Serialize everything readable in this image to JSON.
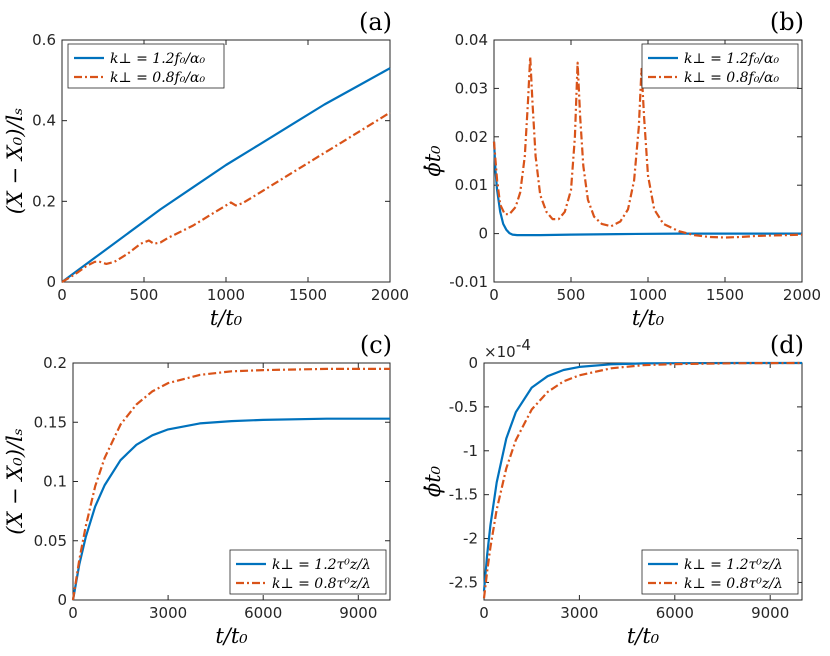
{
  "series_colors": [
    "#0072BD",
    "#D95319"
  ],
  "chart_data": [
    {
      "id": "a",
      "type": "line",
      "panel_label": "(a)",
      "xlabel": "t/t₀",
      "ylabel": "(X − X₀)/lₛ",
      "xlim": [
        0,
        2000
      ],
      "ylim": [
        0,
        0.6
      ],
      "xticks": [
        0,
        500,
        1000,
        1500,
        2000
      ],
      "xtick_labels": [
        "0",
        "500",
        "1000",
        "1500",
        "2000"
      ],
      "yticks": [
        0,
        0.2,
        0.4,
        0.6
      ],
      "ytick_labels": [
        "0",
        "0.2",
        "0.4",
        "0.6"
      ],
      "legend_position": "top-left",
      "series": [
        {
          "name": "k⊥ = 1.2f₀/α₀",
          "style": "solid",
          "x": [
            0,
            100,
            200,
            400,
            600,
            800,
            1000,
            1200,
            1400,
            1600,
            1800,
            2000
          ],
          "y": [
            0,
            0.03,
            0.06,
            0.12,
            0.18,
            0.235,
            0.29,
            0.34,
            0.39,
            0.44,
            0.485,
            0.53
          ]
        },
        {
          "name": "k⊥ = 0.8f₀/α₀",
          "style": "dashdot",
          "x": [
            0,
            50,
            100,
            150,
            200,
            230,
            270,
            320,
            400,
            480,
            530,
            560,
            600,
            650,
            700,
            800,
            900,
            1000,
            1030,
            1060,
            1100,
            1200,
            1300,
            1400,
            1500,
            1600,
            1700,
            1800,
            1900,
            2000
          ],
          "y": [
            0,
            0.012,
            0.025,
            0.04,
            0.05,
            0.05,
            0.045,
            0.05,
            0.07,
            0.095,
            0.103,
            0.095,
            0.098,
            0.11,
            0.12,
            0.14,
            0.165,
            0.19,
            0.197,
            0.19,
            0.195,
            0.22,
            0.245,
            0.27,
            0.295,
            0.32,
            0.345,
            0.37,
            0.395,
            0.42
          ]
        }
      ]
    },
    {
      "id": "b",
      "type": "line",
      "panel_label": "(b)",
      "xlabel": "t/t₀",
      "ylabel": "ϕ̇t₀",
      "xlim": [
        0,
        2000
      ],
      "ylim": [
        -0.01,
        0.04
      ],
      "xticks": [
        0,
        500,
        1000,
        1500,
        2000
      ],
      "xtick_labels": [
        "0",
        "500",
        "1000",
        "1500",
        "2000"
      ],
      "yticks": [
        -0.01,
        0,
        0.01,
        0.02,
        0.03,
        0.04
      ],
      "ytick_labels": [
        "-0.01",
        "0",
        "0.01",
        "0.02",
        "0.03",
        "0.04"
      ],
      "legend_position": "top-right",
      "series": [
        {
          "name": "k⊥ = 1.2f₀/α₀",
          "style": "solid",
          "x": [
            0,
            10,
            20,
            40,
            60,
            80,
            100,
            120,
            150,
            200,
            300,
            500,
            800,
            1200,
            1600,
            2000
          ],
          "y": [
            0.019,
            0.013,
            0.009,
            0.0045,
            0.002,
            0.0008,
            0.0001,
            -0.0002,
            -0.0003,
            -0.0003,
            -0.0003,
            -0.0002,
            -0.0001,
            0,
            0,
            0
          ]
        },
        {
          "name": "k⊥ = 0.8f₀/α₀",
          "style": "dashdot",
          "x": [
            0,
            20,
            40,
            70,
            100,
            140,
            170,
            200,
            220,
            235,
            250,
            270,
            300,
            340,
            380,
            420,
            460,
            500,
            525,
            543,
            560,
            580,
            610,
            650,
            700,
            760,
            820,
            870,
            910,
            940,
            958,
            975,
            1000,
            1040,
            1100,
            1200,
            1300,
            1400,
            1500,
            1600,
            1700,
            1800,
            1900,
            2000
          ],
          "y": [
            0.019,
            0.011,
            0.006,
            0.004,
            0.004,
            0.0055,
            0.0085,
            0.016,
            0.027,
            0.0365,
            0.027,
            0.016,
            0.008,
            0.0045,
            0.003,
            0.003,
            0.0045,
            0.009,
            0.02,
            0.0353,
            0.024,
            0.014,
            0.007,
            0.0035,
            0.002,
            0.0015,
            0.0025,
            0.005,
            0.011,
            0.022,
            0.034,
            0.024,
            0.012,
            0.005,
            0.002,
            0.0005,
            -0.0003,
            -0.0007,
            -0.0008,
            -0.0007,
            -0.0005,
            -0.0004,
            -0.0003,
            -0.0002
          ]
        }
      ]
    },
    {
      "id": "c",
      "type": "line",
      "panel_label": "(c)",
      "xlabel": "t/t₀",
      "ylabel": "(X − X₀)/lₛ",
      "xlim": [
        0,
        10000
      ],
      "ylim": [
        0,
        0.2
      ],
      "xticks": [
        0,
        3000,
        6000,
        9000
      ],
      "xtick_labels": [
        "0",
        "3000",
        "6000",
        "9000"
      ],
      "yticks": [
        0,
        0.05,
        0.1,
        0.15,
        0.2
      ],
      "ytick_labels": [
        "0",
        "0.05",
        "0.1",
        "0.15",
        "0.2"
      ],
      "legend_position": "bottom-right",
      "series": [
        {
          "name": "k⊥ = 1.2τ⁰z/λ",
          "style": "solid",
          "x": [
            0,
            200,
            400,
            700,
            1000,
            1500,
            2000,
            2500,
            3000,
            4000,
            5000,
            6000,
            8000,
            10000
          ],
          "y": [
            0,
            0.03,
            0.053,
            0.079,
            0.097,
            0.118,
            0.131,
            0.139,
            0.144,
            0.149,
            0.151,
            0.152,
            0.153,
            0.153
          ]
        },
        {
          "name": "k⊥ = 0.8τ⁰z/λ",
          "style": "dashdot",
          "x": [
            0,
            200,
            400,
            700,
            1000,
            1500,
            2000,
            2500,
            3000,
            4000,
            5000,
            6000,
            8000,
            10000
          ],
          "y": [
            0,
            0.034,
            0.062,
            0.096,
            0.12,
            0.148,
            0.165,
            0.176,
            0.183,
            0.19,
            0.193,
            0.194,
            0.195,
            0.195
          ]
        }
      ]
    },
    {
      "id": "d",
      "type": "line",
      "panel_label": "(d)",
      "xlabel": "t/t₀",
      "ylabel": "ϕ̇t₀",
      "y_multiplier_base": "×10",
      "y_multiplier_exp": "-4",
      "xlim": [
        0,
        10000
      ],
      "ylim": [
        -2.7,
        0
      ],
      "xticks": [
        0,
        3000,
        6000,
        9000
      ],
      "xtick_labels": [
        "0",
        "3000",
        "6000",
        "9000"
      ],
      "yticks": [
        -2.5,
        -2,
        -1.5,
        -1,
        -0.5,
        0
      ],
      "ytick_labels": [
        "-2.5",
        "-2",
        "-1.5",
        "-1",
        "-0.5",
        "0"
      ],
      "legend_position": "bottom-right",
      "series": [
        {
          "name": "k⊥ = 1.2τ⁰z/λ",
          "style": "solid",
          "x": [
            0,
            100,
            200,
            400,
            700,
            1000,
            1500,
            2000,
            2500,
            3000,
            4000,
            5000,
            6000,
            8000,
            10000
          ],
          "y": [
            -2.6,
            -2.18,
            -1.85,
            -1.36,
            -0.86,
            -0.56,
            -0.28,
            -0.15,
            -0.08,
            -0.045,
            -0.015,
            -0.005,
            -0.002,
            0,
            0
          ]
        },
        {
          "name": "k⊥ = 0.8τ⁰z/λ",
          "style": "dashdot",
          "x": [
            0,
            100,
            200,
            400,
            700,
            1000,
            1500,
            2000,
            2500,
            3000,
            4000,
            5000,
            6000,
            8000,
            10000
          ],
          "y": [
            -2.68,
            -2.37,
            -2.1,
            -1.67,
            -1.2,
            -0.88,
            -0.53,
            -0.33,
            -0.21,
            -0.14,
            -0.06,
            -0.025,
            -0.012,
            -0.002,
            0
          ]
        }
      ]
    }
  ]
}
